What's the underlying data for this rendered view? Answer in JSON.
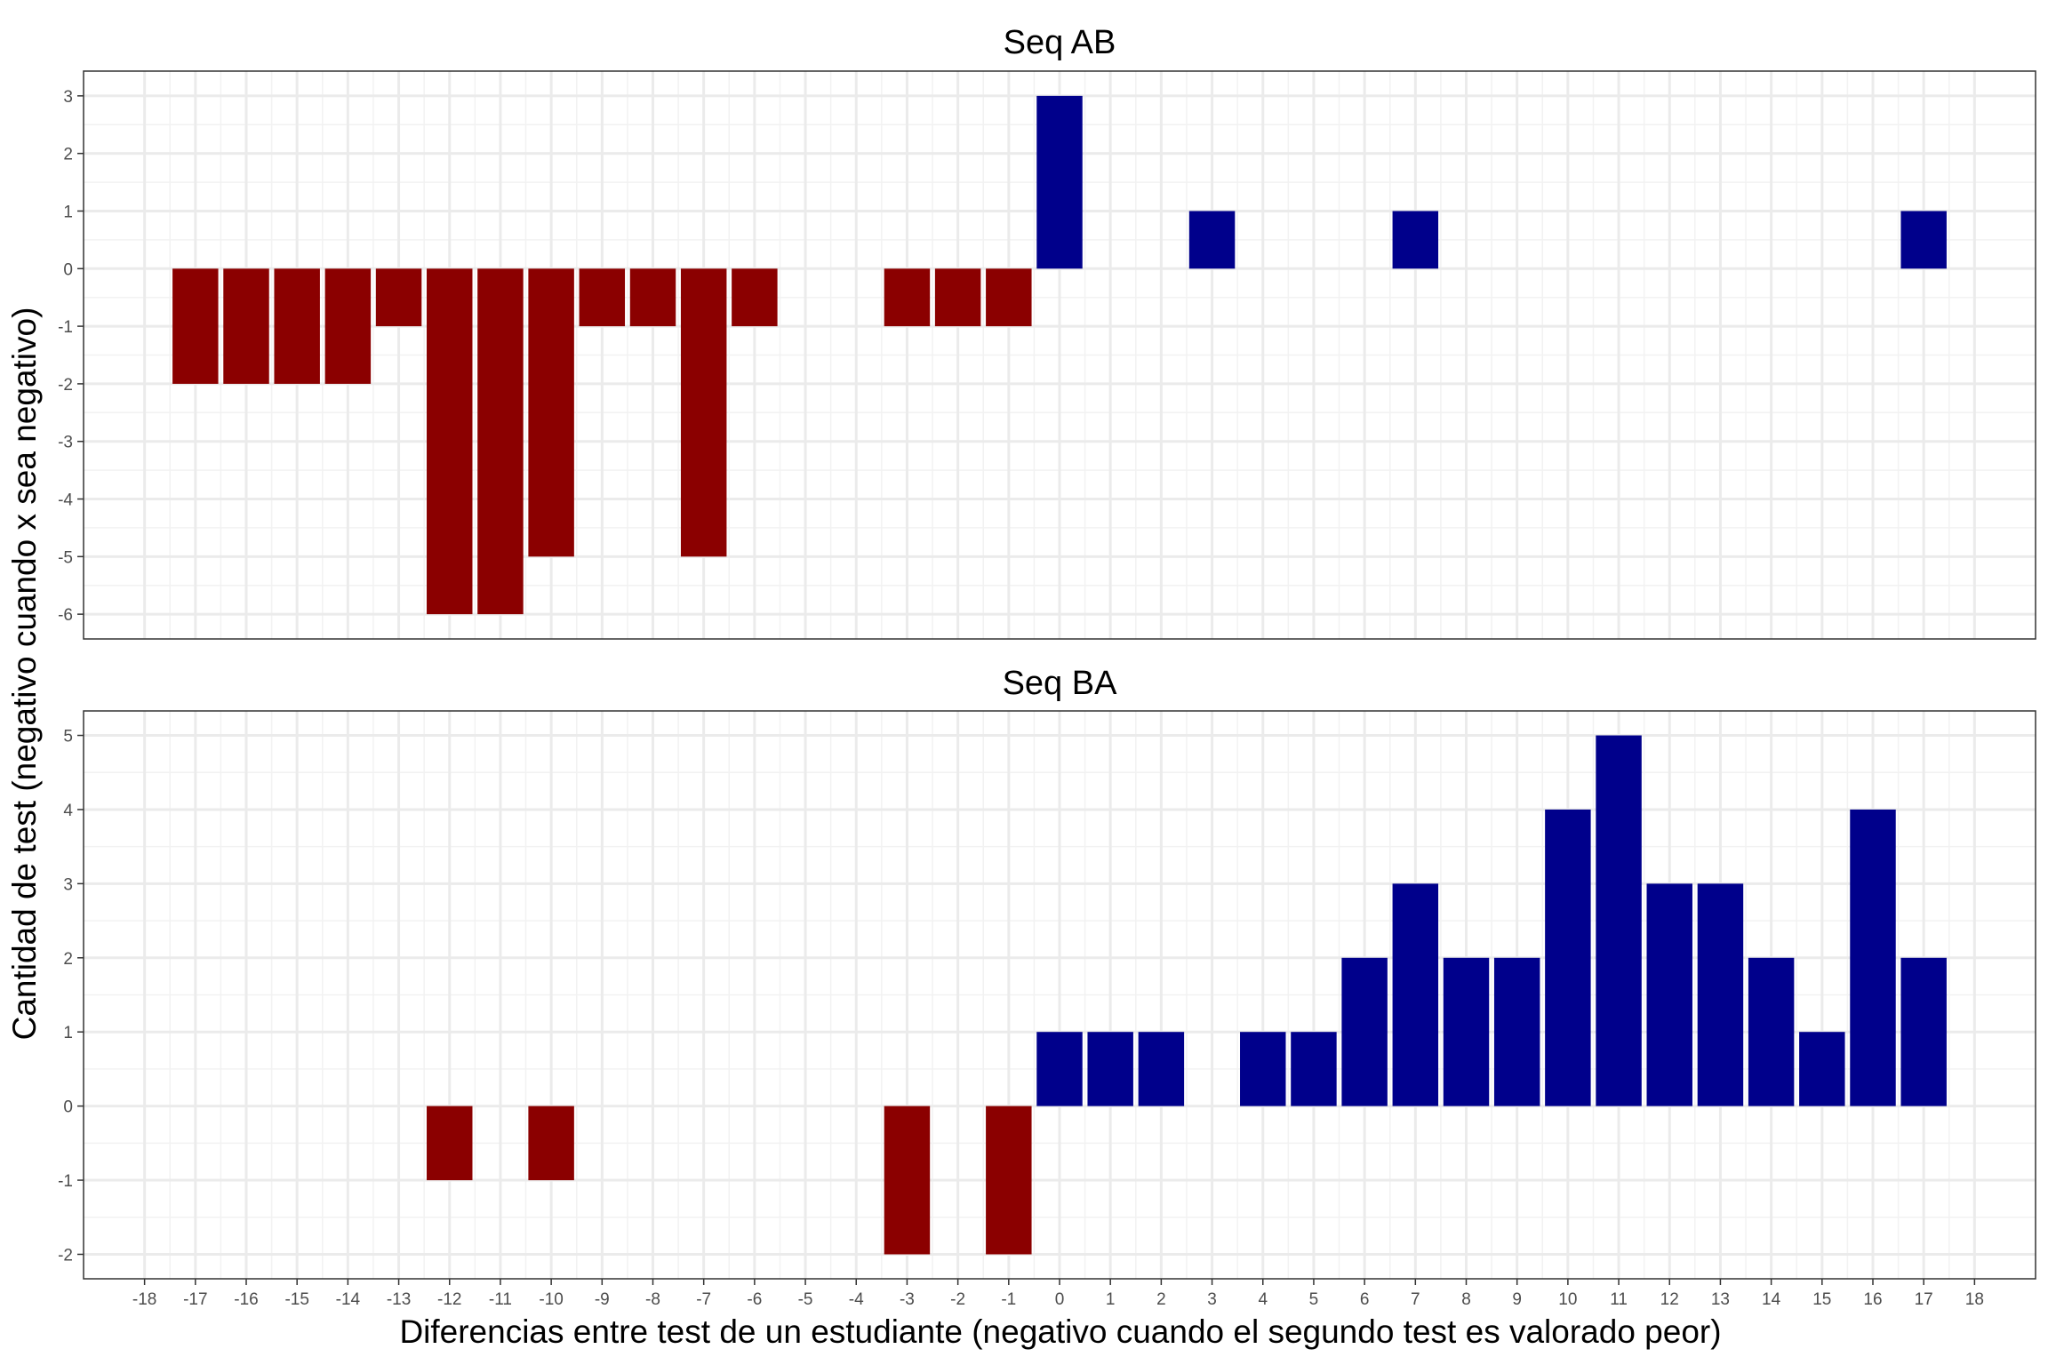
{
  "chart_data": {
    "type": "bar",
    "xlabel": "Diferencias entre test de un estudiante (negativo cuando el segundo test es valorado peor)",
    "ylabel": "Cantidad de test (negativo cuando x sea negativo)",
    "x_ticks": [
      -18,
      -17,
      -16,
      -15,
      -14,
      -13,
      -12,
      -11,
      -10,
      -9,
      -8,
      -7,
      -6,
      -5,
      -4,
      -3,
      -2,
      -1,
      0,
      1,
      2,
      3,
      4,
      5,
      6,
      7,
      8,
      9,
      10,
      11,
      12,
      13,
      14,
      15,
      16,
      17,
      18
    ],
    "xlim": [
      -19.2,
      19.2
    ],
    "colors": {
      "negative": "#8b0000",
      "positive": "#00008b"
    },
    "panels": [
      {
        "title": "Seq AB",
        "ylim": [
          -6.43,
          3.43
        ],
        "y_ticks": [
          -6,
          -5,
          -4,
          -3,
          -2,
          -1,
          0,
          1,
          2,
          3
        ],
        "bars": [
          {
            "x": -17,
            "y": -2
          },
          {
            "x": -16,
            "y": -2
          },
          {
            "x": -15,
            "y": -2
          },
          {
            "x": -14,
            "y": -2
          },
          {
            "x": -13,
            "y": -1
          },
          {
            "x": -12,
            "y": -6
          },
          {
            "x": -11,
            "y": -6
          },
          {
            "x": -10,
            "y": -5
          },
          {
            "x": -9,
            "y": -1
          },
          {
            "x": -8,
            "y": -1
          },
          {
            "x": -7,
            "y": -5
          },
          {
            "x": -6,
            "y": -1
          },
          {
            "x": -3,
            "y": -1
          },
          {
            "x": -2,
            "y": -1
          },
          {
            "x": -1,
            "y": -1
          },
          {
            "x": 0,
            "y": 3
          },
          {
            "x": 3,
            "y": 1
          },
          {
            "x": 7,
            "y": 1
          },
          {
            "x": 17,
            "y": 1
          }
        ]
      },
      {
        "title": "Seq BA",
        "ylim": [
          -2.33,
          5.33
        ],
        "y_ticks": [
          -2,
          -1,
          0,
          1,
          2,
          3,
          4,
          5
        ],
        "bars": [
          {
            "x": -12,
            "y": -1
          },
          {
            "x": -10,
            "y": -1
          },
          {
            "x": -3,
            "y": -2
          },
          {
            "x": -1,
            "y": -2
          },
          {
            "x": 0,
            "y": 1
          },
          {
            "x": 1,
            "y": 1
          },
          {
            "x": 2,
            "y": 1
          },
          {
            "x": 4,
            "y": 1
          },
          {
            "x": 5,
            "y": 1
          },
          {
            "x": 6,
            "y": 2
          },
          {
            "x": 7,
            "y": 3
          },
          {
            "x": 8,
            "y": 2
          },
          {
            "x": 9,
            "y": 2
          },
          {
            "x": 10,
            "y": 4
          },
          {
            "x": 11,
            "y": 5
          },
          {
            "x": 12,
            "y": 3
          },
          {
            "x": 13,
            "y": 3
          },
          {
            "x": 14,
            "y": 2
          },
          {
            "x": 15,
            "y": 1
          },
          {
            "x": 16,
            "y": 4
          },
          {
            "x": 17,
            "y": 2
          }
        ]
      }
    ]
  }
}
